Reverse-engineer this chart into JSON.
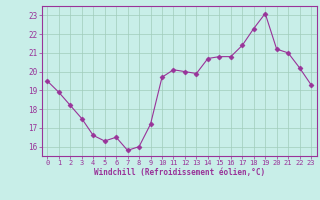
{
  "x": [
    0,
    1,
    2,
    3,
    4,
    5,
    6,
    7,
    8,
    9,
    10,
    11,
    12,
    13,
    14,
    15,
    16,
    17,
    18,
    19,
    20,
    21,
    22,
    23
  ],
  "y": [
    19.5,
    18.9,
    18.2,
    17.5,
    16.6,
    16.3,
    16.5,
    15.8,
    16.0,
    17.2,
    19.7,
    20.1,
    20.0,
    19.9,
    20.7,
    20.8,
    20.8,
    21.4,
    22.3,
    23.1,
    21.2,
    21.0,
    20.2,
    19.3
  ],
  "line_color": "#993399",
  "marker": "D",
  "marker_size": 2.5,
  "bg_color": "#c8eee8",
  "grid_color": "#a0ccbb",
  "xlabel": "Windchill (Refroidissement éolien,°C)",
  "xlabel_color": "#993399",
  "tick_color": "#993399",
  "ylim": [
    15.5,
    23.5
  ],
  "xlim": [
    -0.5,
    23.5
  ],
  "yticks": [
    16,
    17,
    18,
    19,
    20,
    21,
    22,
    23
  ],
  "xticks": [
    0,
    1,
    2,
    3,
    4,
    5,
    6,
    7,
    8,
    9,
    10,
    11,
    12,
    13,
    14,
    15,
    16,
    17,
    18,
    19,
    20,
    21,
    22,
    23
  ]
}
